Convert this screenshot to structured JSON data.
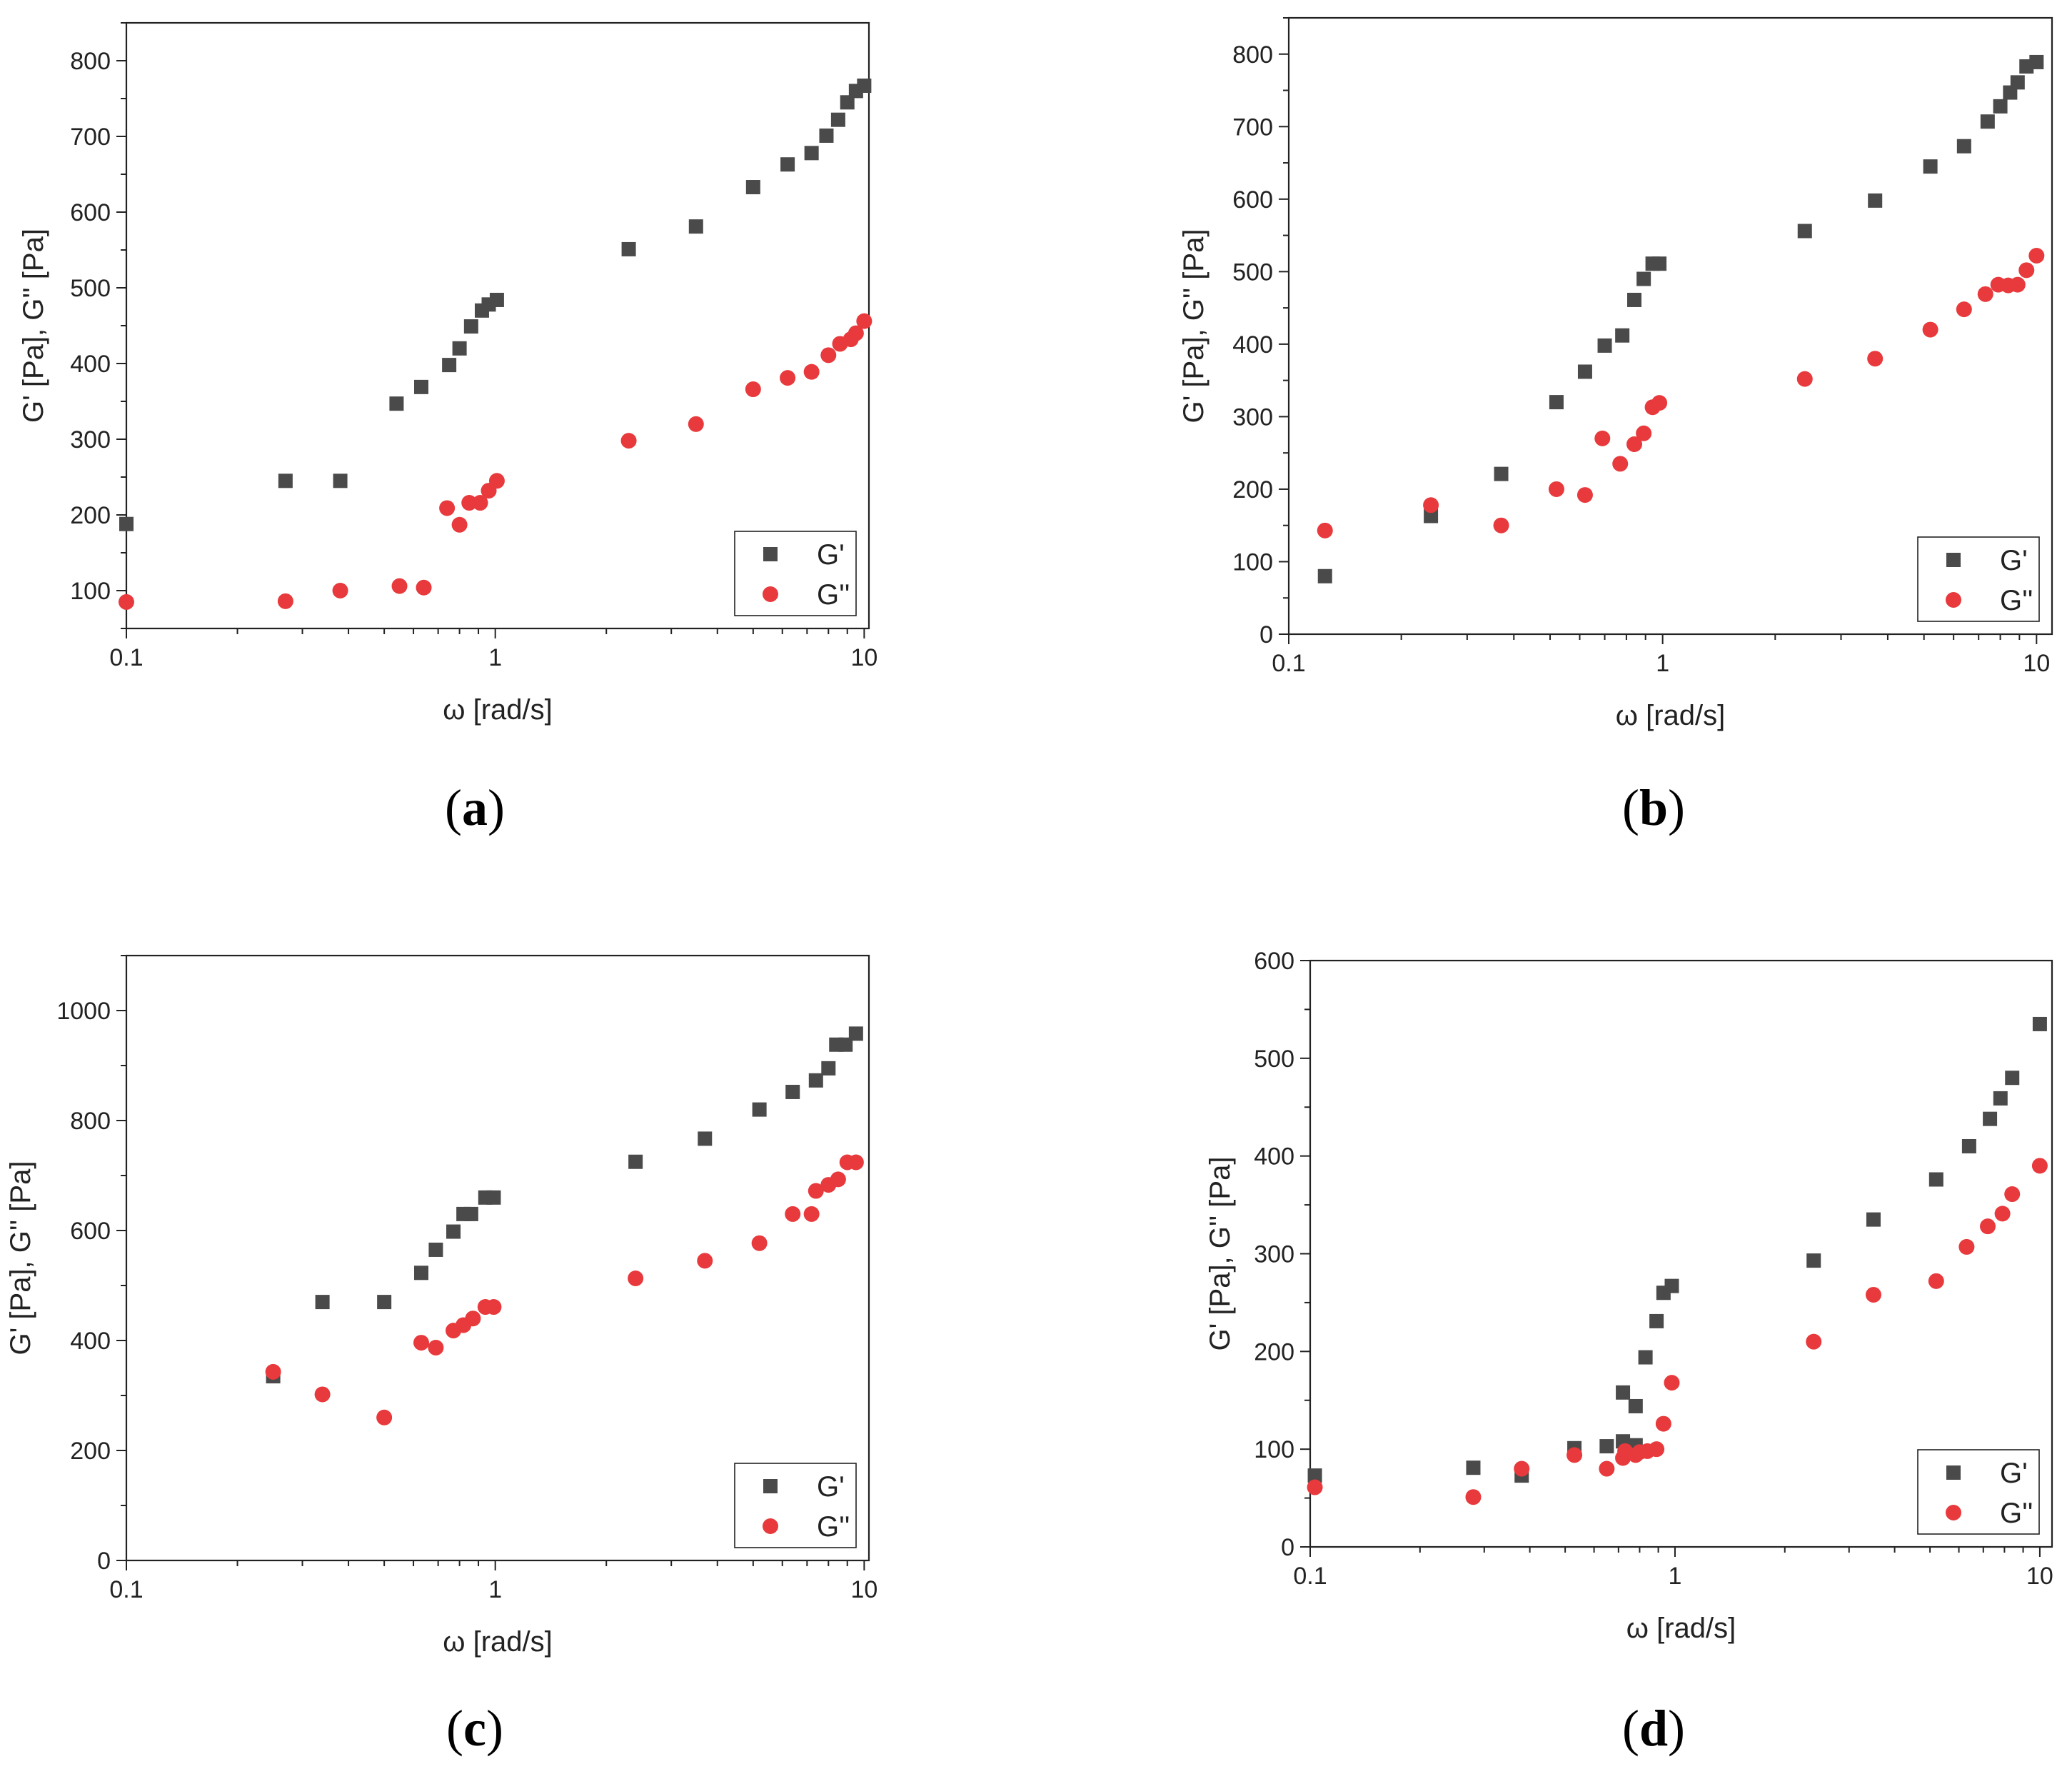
{
  "chart_data": [
    {
      "panel": "a",
      "caption": {
        "open": "(",
        "letter": "a",
        "close": ")"
      },
      "type": "scatter",
      "xscale": "log",
      "xlabel": "ω [rad/s]",
      "ylabel": "G' [Pa], G'' [Pa]",
      "xlim": [
        0.1,
        10.3
      ],
      "ylim": [
        50,
        850
      ],
      "yticks": [
        100,
        200,
        300,
        400,
        500,
        600,
        700,
        800
      ],
      "xticks": [
        {
          "value": 0.1,
          "label": "0.1"
        },
        {
          "value": 1,
          "label": "1"
        },
        {
          "value": 10,
          "label": "10"
        }
      ],
      "legend_position": "bottom-right",
      "series": [
        {
          "name": "G'",
          "marker": "square",
          "color": "#4a4a4a",
          "points": [
            [
              0.1,
              188
            ],
            [
              0.27,
              245
            ],
            [
              0.38,
              245
            ],
            [
              0.54,
              347
            ],
            [
              0.63,
              369
            ],
            [
              0.75,
              398
            ],
            [
              0.8,
              420
            ],
            [
              0.86,
              449
            ],
            [
              0.92,
              470
            ],
            [
              0.96,
              478
            ],
            [
              1.01,
              484
            ],
            [
              2.3,
              551
            ],
            [
              3.5,
              581
            ],
            [
              5.0,
              633
            ],
            [
              6.2,
              663
            ],
            [
              7.2,
              678
            ],
            [
              7.9,
              701
            ],
            [
              8.5,
              722
            ],
            [
              9.0,
              745
            ],
            [
              9.5,
              760
            ],
            [
              10.0,
              767
            ]
          ]
        },
        {
          "name": "G''",
          "marker": "circle",
          "color": "#e8393c",
          "points": [
            [
              0.1,
              85
            ],
            [
              0.27,
              86
            ],
            [
              0.38,
              100
            ],
            [
              0.55,
              106
            ],
            [
              0.64,
              104
            ],
            [
              0.74,
              209
            ],
            [
              0.8,
              187
            ],
            [
              0.85,
              216
            ],
            [
              0.91,
              216
            ],
            [
              0.96,
              232
            ],
            [
              1.01,
              245
            ],
            [
              2.3,
              298
            ],
            [
              3.5,
              320
            ],
            [
              5.0,
              366
            ],
            [
              6.2,
              381
            ],
            [
              7.2,
              389
            ],
            [
              8.0,
              411
            ],
            [
              8.6,
              426
            ],
            [
              9.2,
              432
            ],
            [
              9.5,
              440
            ],
            [
              10.0,
              456
            ]
          ]
        }
      ]
    },
    {
      "panel": "b",
      "caption": {
        "open": "(",
        "letter": "b",
        "close": ")"
      },
      "type": "scatter",
      "xscale": "log",
      "xlabel": "ω [rad/s]",
      "ylabel": "G' [Pa], G'' [Pa]",
      "xlim": [
        0.1,
        11.0
      ],
      "ylim": [
        0,
        850
      ],
      "yticks": [
        0,
        100,
        200,
        300,
        400,
        500,
        600,
        700,
        800
      ],
      "xticks": [
        {
          "value": 0.1,
          "label": "0.1"
        },
        {
          "value": 1,
          "label": "1"
        },
        {
          "value": 10,
          "label": "10"
        }
      ],
      "legend_position": "bottom-right",
      "series": [
        {
          "name": "G'",
          "marker": "square",
          "color": "#4a4a4a",
          "points": [
            [
              0.125,
              80
            ],
            [
              0.24,
              163
            ],
            [
              0.37,
              221
            ],
            [
              0.52,
              320
            ],
            [
              0.62,
              362
            ],
            [
              0.7,
              398
            ],
            [
              0.78,
              412
            ],
            [
              0.84,
              461
            ],
            [
              0.89,
              490
            ],
            [
              0.94,
              511
            ],
            [
              0.98,
              511
            ],
            [
              2.4,
              556
            ],
            [
              3.7,
              598
            ],
            [
              5.2,
              645
            ],
            [
              6.4,
              673
            ],
            [
              7.4,
              707
            ],
            [
              8.0,
              728
            ],
            [
              8.5,
              747
            ],
            [
              8.9,
              761
            ],
            [
              9.4,
              783
            ],
            [
              10.0,
              789
            ]
          ]
        },
        {
          "name": "G''",
          "marker": "circle",
          "color": "#e8393c",
          "points": [
            [
              0.125,
              143
            ],
            [
              0.24,
              178
            ],
            [
              0.37,
              150
            ],
            [
              0.52,
              200
            ],
            [
              0.62,
              192
            ],
            [
              0.69,
              270
            ],
            [
              0.77,
              235
            ],
            [
              0.84,
              262
            ],
            [
              0.89,
              277
            ],
            [
              0.94,
              313
            ],
            [
              0.98,
              319
            ],
            [
              2.4,
              352
            ],
            [
              3.7,
              380
            ],
            [
              5.2,
              420
            ],
            [
              6.4,
              448
            ],
            [
              7.3,
              469
            ],
            [
              7.9,
              482
            ],
            [
              8.4,
              481
            ],
            [
              8.9,
              482
            ],
            [
              9.4,
              502
            ],
            [
              10.0,
              522
            ]
          ]
        }
      ]
    },
    {
      "panel": "c",
      "caption": {
        "open": "(",
        "letter": "c",
        "close": ")"
      },
      "type": "scatter",
      "xscale": "log",
      "xlabel": "ω [rad/s]",
      "ylabel": "G' [Pa], G'' [Pa]",
      "xlim": [
        0.1,
        10.3
      ],
      "ylim": [
        0,
        1100
      ],
      "yticks": [
        0,
        200,
        400,
        600,
        800,
        1000
      ],
      "xticks": [
        {
          "value": 0.1,
          "label": "0.1"
        },
        {
          "value": 1,
          "label": "1"
        },
        {
          "value": 10,
          "label": "10"
        }
      ],
      "legend_position": "bottom-right",
      "series": [
        {
          "name": "G'",
          "marker": "square",
          "color": "#4a4a4a",
          "points": [
            [
              0.25,
              335
            ],
            [
              0.34,
              470
            ],
            [
              0.5,
              470
            ],
            [
              0.63,
              523
            ],
            [
              0.69,
              565
            ],
            [
              0.77,
              598
            ],
            [
              0.82,
              630
            ],
            [
              0.86,
              630
            ],
            [
              0.94,
              660
            ],
            [
              0.99,
              660
            ],
            [
              2.4,
              725
            ],
            [
              3.7,
              767
            ],
            [
              5.2,
              820
            ],
            [
              6.4,
              852
            ],
            [
              7.4,
              873
            ],
            [
              8.0,
              895
            ],
            [
              8.4,
              938
            ],
            [
              8.9,
              938
            ],
            [
              9.5,
              958
            ]
          ]
        },
        {
          "name": "G''",
          "marker": "circle",
          "color": "#e8393c",
          "points": [
            [
              0.25,
              343
            ],
            [
              0.34,
              302
            ],
            [
              0.5,
              260
            ],
            [
              0.63,
              396
            ],
            [
              0.69,
              387
            ],
            [
              0.77,
              418
            ],
            [
              0.82,
              428
            ],
            [
              0.87,
              440
            ],
            [
              0.94,
              461
            ],
            [
              0.99,
              461
            ],
            [
              2.4,
              513
            ],
            [
              3.7,
              545
            ],
            [
              5.2,
              577
            ],
            [
              6.4,
              630
            ],
            [
              7.2,
              630
            ],
            [
              7.4,
              672
            ],
            [
              8.0,
              683
            ],
            [
              8.5,
              693
            ],
            [
              9.0,
              724
            ],
            [
              9.5,
              724
            ]
          ]
        }
      ]
    },
    {
      "panel": "d",
      "caption": {
        "open": "(",
        "letter": "d",
        "close": ")"
      },
      "type": "scatter",
      "xscale": "log",
      "xlabel": "ω [rad/s]",
      "ylabel": "G' [Pa], G'' [Pa]",
      "xlim": [
        0.1,
        10.8
      ],
      "ylim": [
        0,
        600
      ],
      "yticks": [
        0,
        100,
        200,
        300,
        400,
        500,
        600
      ],
      "xticks": [
        {
          "value": 0.1,
          "label": "0.1"
        },
        {
          "value": 1,
          "label": "1"
        },
        {
          "value": 10,
          "label": "10"
        }
      ],
      "legend_position": "bottom-right",
      "series": [
        {
          "name": "G'",
          "marker": "square",
          "color": "#4a4a4a",
          "points": [
            [
              0.103,
              73
            ],
            [
              0.28,
              81
            ],
            [
              0.38,
              73
            ],
            [
              0.53,
              101
            ],
            [
              0.65,
              103
            ],
            [
              0.72,
              108
            ],
            [
              0.72,
              158
            ],
            [
              0.78,
              104
            ],
            [
              0.78,
              144
            ],
            [
              0.83,
              194
            ],
            [
              0.89,
              231
            ],
            [
              0.93,
              260
            ],
            [
              0.98,
              267
            ],
            [
              2.4,
              293
            ],
            [
              3.5,
              335
            ],
            [
              5.2,
              376
            ],
            [
              6.4,
              410
            ],
            [
              7.3,
              438
            ],
            [
              7.8,
              459
            ],
            [
              8.4,
              480
            ],
            [
              10.0,
              535
            ]
          ]
        },
        {
          "name": "G''",
          "marker": "circle",
          "color": "#e8393c",
          "points": [
            [
              0.103,
              61
            ],
            [
              0.28,
              51
            ],
            [
              0.38,
              80
            ],
            [
              0.53,
              94
            ],
            [
              0.65,
              80
            ],
            [
              0.72,
              91
            ],
            [
              0.73,
              98
            ],
            [
              0.78,
              94
            ],
            [
              0.8,
              97
            ],
            [
              0.84,
              98
            ],
            [
              0.89,
              100
            ],
            [
              0.93,
              126
            ],
            [
              0.98,
              168
            ],
            [
              2.4,
              210
            ],
            [
              3.5,
              258
            ],
            [
              5.2,
              272
            ],
            [
              6.3,
              307
            ],
            [
              7.2,
              328
            ],
            [
              7.9,
              341
            ],
            [
              8.4,
              361
            ],
            [
              10.0,
              390
            ]
          ]
        }
      ]
    }
  ]
}
